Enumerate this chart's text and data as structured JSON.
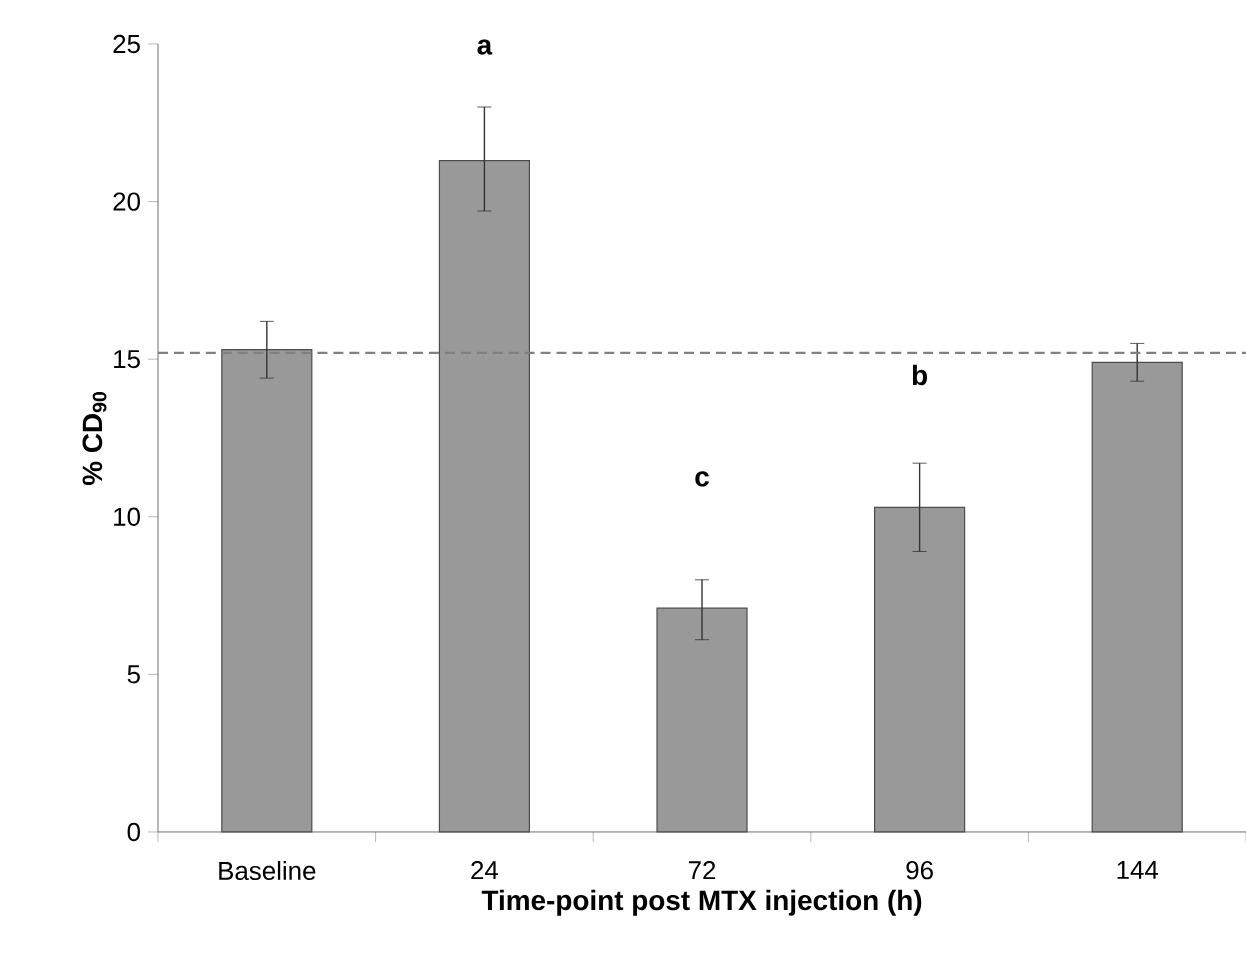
{
  "chart_data": {
    "type": "bar",
    "xlabel": "Time-point post MTX injection (h)",
    "ylabel": "% CD$_{90}$",
    "categories": [
      "Baseline",
      "24",
      "72",
      "96",
      "144"
    ],
    "values": [
      15.3,
      21.3,
      7.1,
      10.3,
      14.9
    ],
    "errors": [
      [
        14.4,
        16.2
      ],
      [
        19.7,
        23.0
      ],
      [
        6.1,
        8.0
      ],
      [
        8.9,
        11.7
      ],
      [
        14.3,
        15.5
      ]
    ],
    "color": "#999999",
    "ylim": [
      0,
      25
    ],
    "yticks": [
      0,
      5,
      10,
      15,
      20,
      25
    ],
    "ref_lines": [
      {
        "axis": "y",
        "value": 15.2,
        "color": "#808080",
        "line_style": "dashed"
      }
    ],
    "annotations": [
      "a",
      "c",
      "b"
    ]
  }
}
